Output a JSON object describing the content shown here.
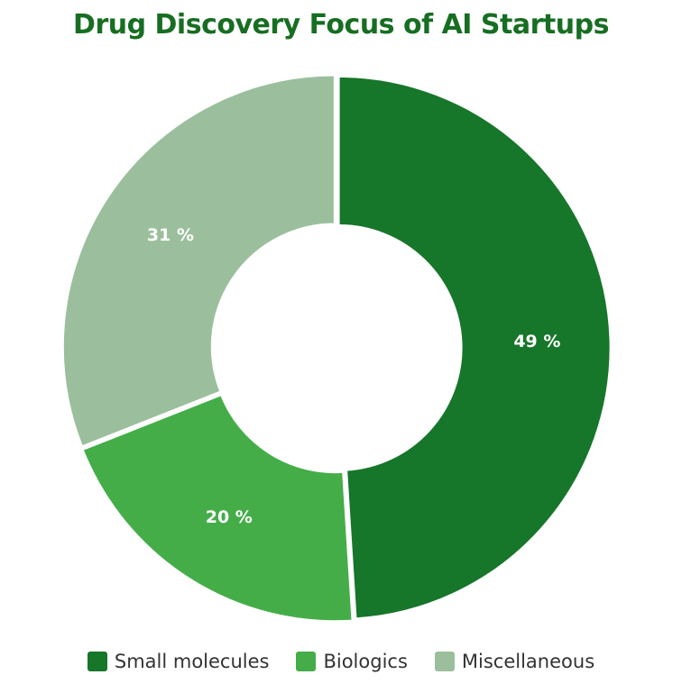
{
  "chart_data": {
    "type": "pie",
    "variant": "donut",
    "title": "Drug Discovery Focus of AI Startups",
    "categories": [
      "Small molecules",
      "Biologics",
      "Miscellaneous"
    ],
    "values": [
      49,
      20,
      31
    ],
    "value_labels": [
      "49 %",
      "20 %",
      "31 %"
    ],
    "unit": "%",
    "colors": [
      "#16762a",
      "#44ad48",
      "#9bbf9c"
    ],
    "legend_position": "bottom"
  }
}
